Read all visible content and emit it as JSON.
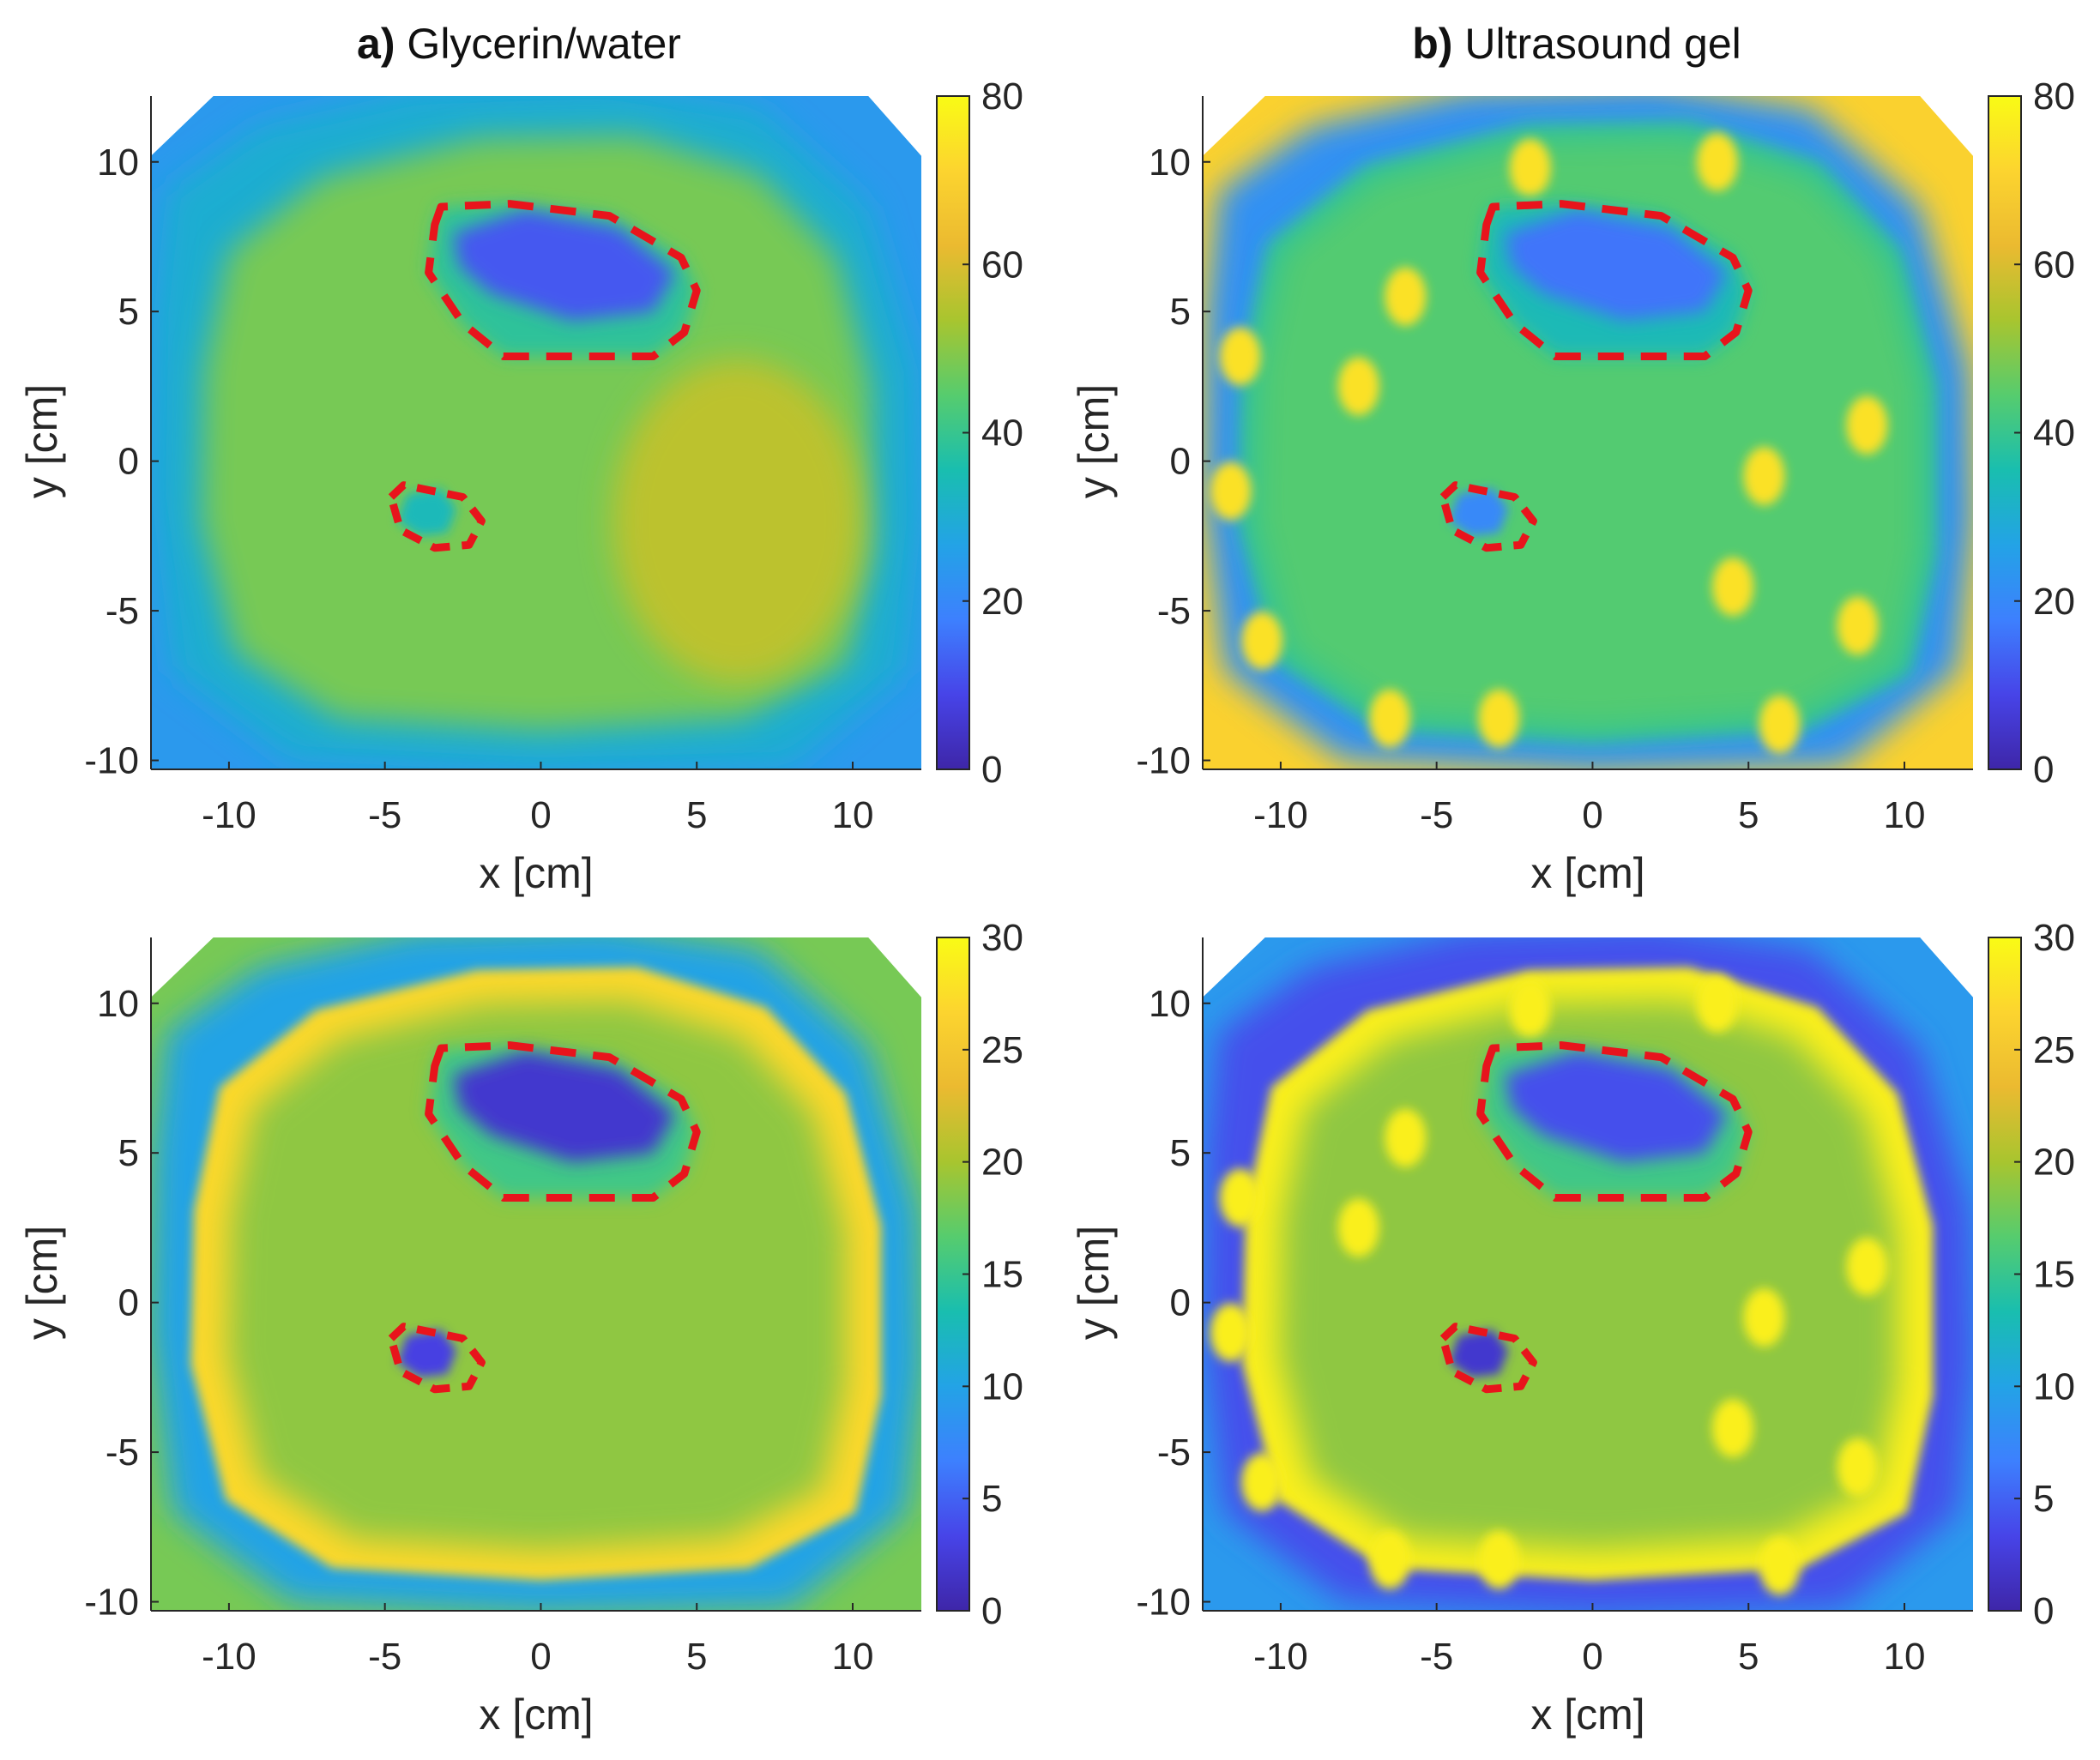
{
  "figure": {
    "columns": [
      {
        "label": "a)",
        "title": "Glycerin/water"
      },
      {
        "label": "b)",
        "title": "Ultrasound gel"
      }
    ]
  },
  "colors": {
    "parula": [
      "#3e26a8",
      "#4744e8",
      "#3d80fe",
      "#23a3e6",
      "#19beaf",
      "#56cc6e",
      "#a8c52f",
      "#ebba30",
      "#fcd42f",
      "#f9fb15"
    ],
    "dashed_outline": "#e8141c"
  },
  "chart_data": [
    {
      "id": "a-top",
      "type": "heatmap",
      "column": "a",
      "row": "top",
      "xlabel": "x [cm]",
      "ylabel": "y [cm]",
      "xlim": [
        -12.5,
        12.2
      ],
      "ylim": [
        -10.3,
        12.2
      ],
      "xticks": [
        -10,
        -5,
        0,
        5,
        10
      ],
      "yticks": [
        -10,
        -5,
        0,
        5,
        10
      ],
      "colorbar": {
        "range": [
          0,
          80
        ],
        "ticks": [
          0,
          20,
          40,
          60,
          80
        ]
      },
      "background_value": 24,
      "regions": [
        {
          "name": "outer-ring",
          "value": 30
        },
        {
          "name": "body",
          "value": 48
        },
        {
          "name": "right-region",
          "value": 56
        },
        {
          "name": "cavity",
          "value": 12
        },
        {
          "name": "small-target",
          "value": 34
        }
      ]
    },
    {
      "id": "b-top",
      "type": "heatmap",
      "column": "b",
      "row": "top",
      "xlabel": "x [cm]",
      "ylabel": "y [cm]",
      "xlim": [
        -12.5,
        12.2
      ],
      "ylim": [
        -10.3,
        12.2
      ],
      "xticks": [
        -10,
        -5,
        0,
        5,
        10
      ],
      "yticks": [
        -10,
        -5,
        0,
        5,
        10
      ],
      "colorbar": {
        "range": [
          0,
          80
        ],
        "ticks": [
          0,
          20,
          40,
          60,
          80
        ]
      },
      "background_value": 70,
      "regions": [
        {
          "name": "outer-ring",
          "value": 22
        },
        {
          "name": "inner-ring",
          "value": 38
        },
        {
          "name": "body",
          "value": 44
        },
        {
          "name": "cavity",
          "value": 16
        },
        {
          "name": "small-target",
          "value": 20
        },
        {
          "name": "hot-spots",
          "value": 74
        }
      ]
    },
    {
      "id": "a-bottom",
      "type": "heatmap",
      "column": "a",
      "row": "bottom",
      "xlabel": "x [cm]",
      "ylabel": "y [cm]",
      "xlim": [
        -12.5,
        12.2
      ],
      "ylim": [
        -10.3,
        12.2
      ],
      "xticks": [
        -10,
        -5,
        0,
        5,
        10
      ],
      "yticks": [
        -10,
        -5,
        0,
        5,
        10
      ],
      "colorbar": {
        "range": [
          0,
          30
        ],
        "ticks": [
          0,
          5,
          10,
          15,
          20,
          25,
          30
        ]
      },
      "background_value": 18,
      "regions": [
        {
          "name": "outer-ring",
          "value": 10
        },
        {
          "name": "shell",
          "value": 27
        },
        {
          "name": "body",
          "value": 19
        },
        {
          "name": "cavity",
          "value": 2
        },
        {
          "name": "small-target",
          "value": 3
        }
      ]
    },
    {
      "id": "b-bottom",
      "type": "heatmap",
      "column": "b",
      "row": "bottom",
      "xlabel": "x [cm]",
      "ylabel": "y [cm]",
      "xlim": [
        -12.5,
        12.2
      ],
      "ylim": [
        -10.3,
        12.2
      ],
      "xticks": [
        -10,
        -5,
        0,
        5,
        10
      ],
      "yticks": [
        -10,
        -5,
        0,
        5,
        10
      ],
      "colorbar": {
        "range": [
          0,
          30
        ],
        "ticks": [
          0,
          5,
          10,
          15,
          20,
          25,
          30
        ]
      },
      "background_value": 9,
      "regions": [
        {
          "name": "outer-ring",
          "value": 4
        },
        {
          "name": "shell",
          "value": 29
        },
        {
          "name": "body",
          "value": 19
        },
        {
          "name": "cavity",
          "value": 4
        },
        {
          "name": "small-target",
          "value": 2
        },
        {
          "name": "hot-spots",
          "value": 29
        }
      ]
    }
  ]
}
